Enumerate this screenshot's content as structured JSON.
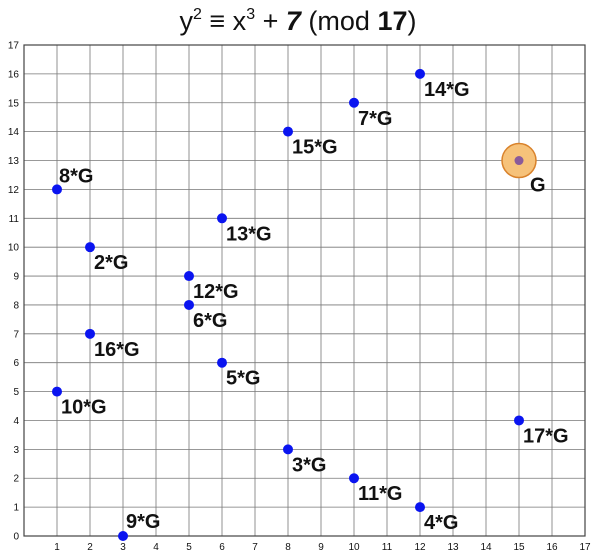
{
  "title": {
    "y": "y",
    "y_exp": "2",
    "equiv": " ≡ x",
    "x_exp": "3",
    "plus": " + ",
    "constant": "7",
    "mod_open": " (mod ",
    "modulus": "17",
    "mod_close": ")"
  },
  "chart_data": {
    "type": "scatter",
    "xlim": [
      0,
      17
    ],
    "ylim": [
      0,
      17
    ],
    "x_ticks": [
      "1",
      "2",
      "3",
      "4",
      "5",
      "6",
      "7",
      "8",
      "9",
      "10",
      "11",
      "12",
      "13",
      "14",
      "15",
      "16",
      "17"
    ],
    "y_ticks": [
      "0",
      "1",
      "2",
      "3",
      "4",
      "5",
      "6",
      "7",
      "8",
      "9",
      "10",
      "11",
      "12",
      "13",
      "14",
      "15",
      "16",
      "17"
    ],
    "grid": true,
    "point_color": "#0a14f0",
    "highlight_color": "#f6c27a",
    "highlight_edge": "#d9822b",
    "points": [
      {
        "label": "G",
        "x": 15,
        "y": 13,
        "highlight": true
      },
      {
        "label": "2*G",
        "x": 2,
        "y": 10
      },
      {
        "label": "3*G",
        "x": 8,
        "y": 3
      },
      {
        "label": "4*G",
        "x": 12,
        "y": 1
      },
      {
        "label": "5*G",
        "x": 6,
        "y": 6
      },
      {
        "label": "6*G",
        "x": 5,
        "y": 8
      },
      {
        "label": "7*G",
        "x": 10,
        "y": 15
      },
      {
        "label": "8*G",
        "x": 1,
        "y": 12
      },
      {
        "label": "9*G",
        "x": 3,
        "y": 0
      },
      {
        "label": "10*G",
        "x": 1,
        "y": 5
      },
      {
        "label": "11*G",
        "x": 10,
        "y": 2
      },
      {
        "label": "12*G",
        "x": 5,
        "y": 9
      },
      {
        "label": "13*G",
        "x": 6,
        "y": 11
      },
      {
        "label": "14*G",
        "x": 12,
        "y": 16
      },
      {
        "label": "15*G",
        "x": 8,
        "y": 14
      },
      {
        "label": "16*G",
        "x": 2,
        "y": 7
      },
      {
        "label": "17*G",
        "x": 15,
        "y": 4
      }
    ]
  }
}
